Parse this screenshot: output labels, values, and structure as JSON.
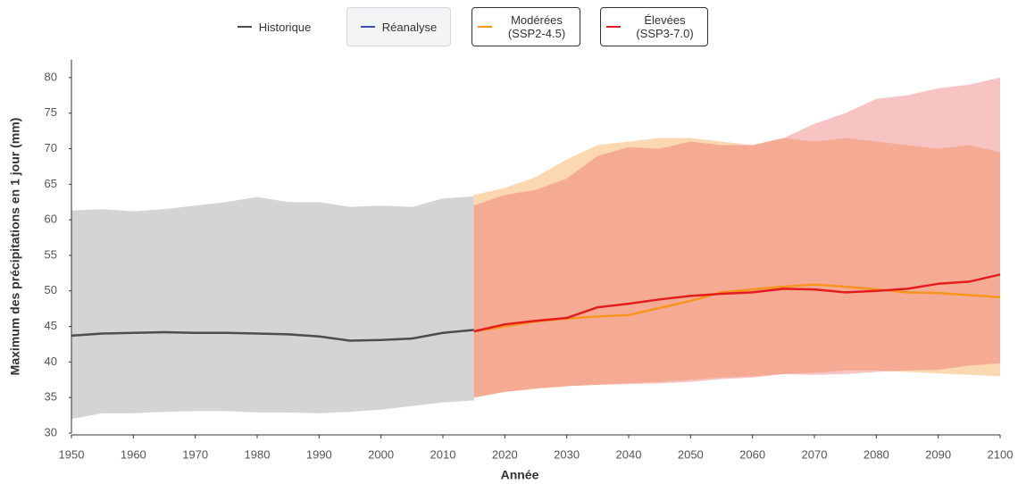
{
  "chart_data": {
    "type": "band-line",
    "xlabel": "Année",
    "ylabel": "Maximum des précipitations en 1 jour (mm)",
    "xlim": [
      1950,
      2100
    ],
    "xticks": [
      1950,
      1960,
      1970,
      1980,
      1990,
      2000,
      2010,
      2020,
      2030,
      2040,
      2050,
      2060,
      2070,
      2080,
      2090,
      2100
    ],
    "ylim": [
      30,
      82.5
    ],
    "yticks": [
      30,
      35,
      40,
      45,
      50,
      55,
      60,
      65,
      70,
      75,
      80
    ],
    "grid": false,
    "series": [
      {
        "name": "Historique",
        "color": "#4d4d4d",
        "band_color": "#d4d4d4",
        "band_opacity": 1,
        "x": [
          1950,
          1955,
          1960,
          1965,
          1970,
          1975,
          1980,
          1985,
          1990,
          1995,
          2000,
          2005,
          2010,
          2015
        ],
        "values": [
          43.7,
          44.0,
          44.1,
          44.2,
          44.1,
          44.1,
          44.0,
          43.9,
          43.6,
          43.0,
          43.1,
          43.3,
          44.1,
          44.5
        ],
        "high": [
          61.3,
          61.5,
          61.2,
          61.5,
          62.0,
          62.5,
          63.2,
          62.5,
          62.5,
          61.8,
          62.0,
          61.8,
          63.0,
          63.3
        ],
        "low": [
          32.0,
          32.8,
          32.8,
          33.0,
          33.1,
          33.1,
          32.9,
          32.9,
          32.8,
          33.0,
          33.3,
          33.8,
          34.3,
          34.6
        ]
      },
      {
        "name": "Réanalyse",
        "color": "#3b4cc0",
        "x": [],
        "values": []
      },
      {
        "name": "Modérées (SSP2-4.5)",
        "color": "#f7941d",
        "band_color": "#fbd8b0",
        "band_opacity": 1,
        "x": [
          2015,
          2020,
          2025,
          2030,
          2035,
          2040,
          2045,
          2050,
          2055,
          2060,
          2065,
          2070,
          2075,
          2080,
          2085,
          2090,
          2095,
          2100
        ],
        "values": [
          44.3,
          45.0,
          45.7,
          46.1,
          46.4,
          46.6,
          47.6,
          48.6,
          49.8,
          50.2,
          50.6,
          50.9,
          50.6,
          50.2,
          49.8,
          49.7,
          49.4,
          49.1
        ],
        "high": [
          63.5,
          64.5,
          66.0,
          68.5,
          70.5,
          71.0,
          71.5,
          71.5,
          71.0,
          70.5,
          71.5,
          71.0,
          71.5,
          71.0,
          70.5,
          70.0,
          70.5,
          69.5
        ],
        "low": [
          35.0,
          35.8,
          36.2,
          36.6,
          36.8,
          37.0,
          37.2,
          37.5,
          37.8,
          38.0,
          38.3,
          38.5,
          38.8,
          38.8,
          38.6,
          38.4,
          38.2,
          38.0
        ]
      },
      {
        "name": "Élevées (SSP3-7.0)",
        "color": "#e31d1d",
        "band_color": "#ee6a6a",
        "band_opacity": 0.4,
        "x": [
          2015,
          2020,
          2025,
          2030,
          2035,
          2040,
          2045,
          2050,
          2055,
          2060,
          2065,
          2070,
          2075,
          2080,
          2085,
          2090,
          2095,
          2100
        ],
        "values": [
          44.3,
          45.3,
          45.8,
          46.2,
          47.7,
          48.2,
          48.8,
          49.3,
          49.6,
          49.8,
          50.3,
          50.2,
          49.8,
          50.0,
          50.3,
          51.0,
          51.3,
          52.3
        ],
        "high": [
          62.0,
          63.5,
          64.2,
          65.8,
          69.0,
          70.2,
          70.0,
          71.0,
          70.5,
          70.5,
          71.5,
          73.5,
          75.0,
          77.0,
          77.5,
          78.5,
          79.0,
          80.0
        ],
        "low": [
          35.0,
          35.8,
          36.3,
          36.6,
          36.8,
          36.9,
          37.0,
          37.2,
          37.6,
          37.8,
          38.3,
          38.2,
          38.3,
          38.6,
          38.8,
          38.9,
          39.5,
          39.8
        ]
      }
    ]
  }
}
